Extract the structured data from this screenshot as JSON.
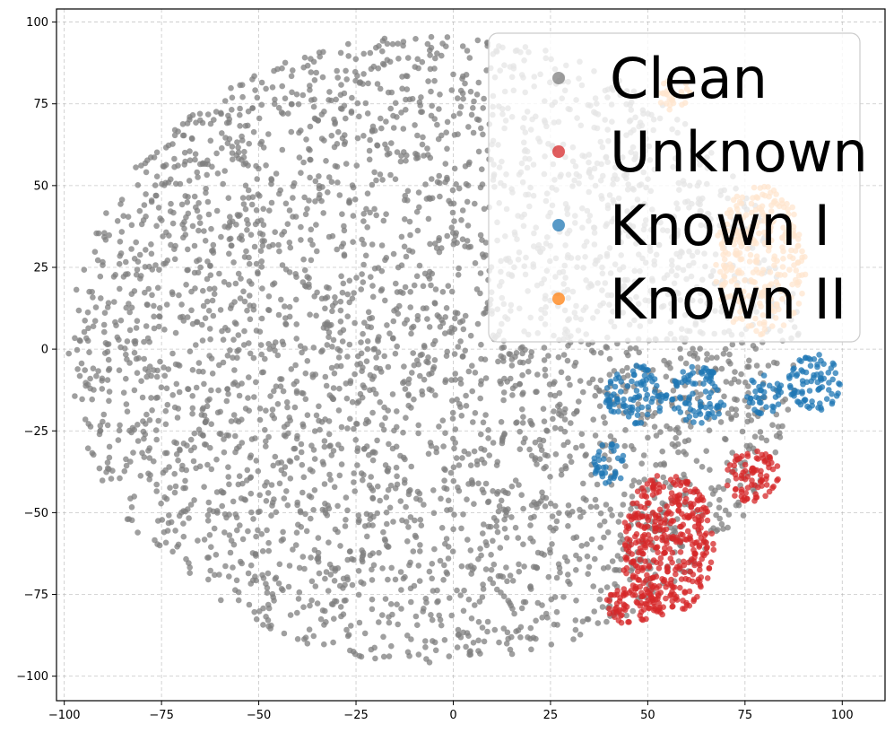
{
  "chart_data": {
    "type": "scatter",
    "title": "",
    "xlabel": "",
    "ylabel": "",
    "xlim": [
      -102,
      111
    ],
    "ylim": [
      -107.5,
      104
    ],
    "xticks": [
      -100,
      -75,
      -50,
      -25,
      0,
      25,
      50,
      75,
      100
    ],
    "yticks": [
      -100,
      -75,
      -50,
      -25,
      0,
      25,
      50,
      75,
      100
    ],
    "xtick_labels": [
      "−100",
      "−75",
      "−50",
      "−25",
      "0",
      "25",
      "50",
      "75",
      "100"
    ],
    "ytick_labels": [
      "−100",
      "−75",
      "−50",
      "−25",
      "0",
      "25",
      "50",
      "75",
      "100"
    ],
    "grid": true,
    "legend_position": "top-right",
    "series": [
      {
        "name": "Clean",
        "color": "#7f7f7f",
        "approx_point_count": 3600,
        "regions": [
          {
            "shape": "disk",
            "center": [
              -5,
              0
            ],
            "radius": [
              94,
              96
            ]
          }
        ]
      },
      {
        "name": "Unknown",
        "color": "#d62728",
        "approx_point_count": 520,
        "regions": [
          {
            "shape": "ellipse",
            "center": [
              55,
              -60
            ],
            "radius": [
              12,
              22
            ]
          },
          {
            "shape": "ellipse",
            "center": [
              77,
              -39
            ],
            "radius": [
              7,
              8
            ]
          },
          {
            "shape": "ellipse",
            "center": [
              45,
              -78
            ],
            "radius": [
              7,
              6
            ]
          }
        ]
      },
      {
        "name": "Known I",
        "color": "#1f77b4",
        "approx_point_count": 330,
        "regions": [
          {
            "shape": "ellipse",
            "center": [
              47,
              -14
            ],
            "radius": [
              8,
              9
            ]
          },
          {
            "shape": "ellipse",
            "center": [
              63,
              -14
            ],
            "radius": [
              7,
              9
            ]
          },
          {
            "shape": "ellipse",
            "center": [
              80,
              -14
            ],
            "radius": [
              5,
              6
            ]
          },
          {
            "shape": "ellipse",
            "center": [
              93,
              -10
            ],
            "radius": [
              7,
              9
            ]
          },
          {
            "shape": "ellipse",
            "center": [
              40,
              -35
            ],
            "radius": [
              4,
              7
            ]
          }
        ]
      },
      {
        "name": "Known II",
        "color": "#ff7f0e",
        "approx_point_count": 300,
        "regions": [
          {
            "shape": "ellipse",
            "center": [
              56,
              78
            ],
            "radius": [
              5,
              5
            ]
          },
          {
            "shape": "ellipse",
            "center": [
              79,
              27
            ],
            "radius": [
              12,
              23
            ]
          }
        ]
      }
    ]
  }
}
